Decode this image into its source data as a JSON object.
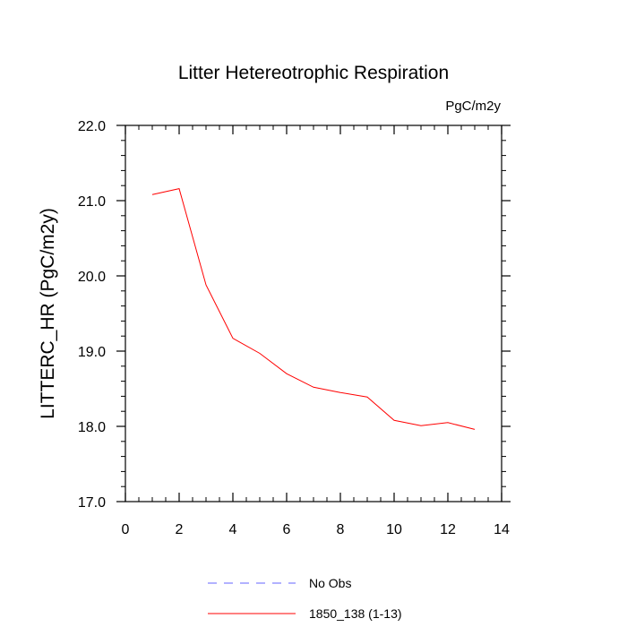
{
  "chart_data": {
    "type": "line",
    "title": "Litter Hetereotrophic Respiration",
    "units_label": "PgC/m2y",
    "ylabel": "LITTERC_HR  (PgC/m2y)",
    "xlabel": "",
    "xlim": [
      0,
      14
    ],
    "ylim": [
      17.0,
      22.0
    ],
    "x_ticks": [
      0,
      2,
      4,
      6,
      8,
      10,
      12,
      14
    ],
    "x_tick_labels": [
      "0",
      "2",
      "4",
      "6",
      "8",
      "10",
      "12",
      "14"
    ],
    "y_ticks": [
      17.0,
      18.0,
      19.0,
      20.0,
      21.0,
      22.0
    ],
    "y_tick_labels": [
      "17.0",
      "18.0",
      "19.0",
      "20.0",
      "21.0",
      "22.0"
    ],
    "grid": false,
    "legend_position": "bottom-center",
    "series": [
      {
        "name": "1850_138 (1-13)",
        "color": "#ff0000",
        "style": "solid",
        "x": [
          1,
          2,
          3,
          4,
          5,
          6,
          7,
          8,
          9,
          10,
          11,
          12,
          13
        ],
        "y": [
          21.08,
          21.16,
          19.88,
          19.17,
          18.97,
          18.7,
          18.52,
          18.45,
          18.39,
          18.08,
          18.01,
          18.05,
          17.96
        ]
      }
    ],
    "legend": [
      {
        "label": "No Obs",
        "color": "#6666ff",
        "style": "dashed"
      },
      {
        "label": "1850_138 (1-13)",
        "color": "#ff0000",
        "style": "solid"
      }
    ]
  }
}
